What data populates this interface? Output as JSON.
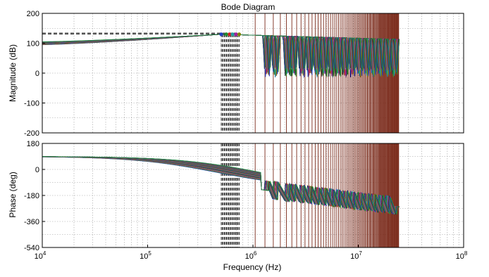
{
  "chart_data": {
    "type": "line",
    "title": "Bode Diagram",
    "xlabel": "Frequency  (Hz)",
    "xscale": "log",
    "xlim": [
      10000,
      100000000
    ],
    "x_ticks": [
      {
        "base": "10",
        "exp": "4"
      },
      {
        "base": "10",
        "exp": "5"
      },
      {
        "base": "10",
        "exp": "6"
      },
      {
        "base": "10",
        "exp": "7"
      },
      {
        "base": "10",
        "exp": "8"
      }
    ],
    "grid": true,
    "colors": {
      "resonance_lines": "#7a2a1a",
      "dashed_markers": "#000000",
      "axis": "#000000",
      "grid": "#a0a0a0",
      "series": [
        "#1f3fbf",
        "#1f8f2f",
        "#d02020",
        "#20a0a0",
        "#a020a0",
        "#808000",
        "#303030"
      ]
    },
    "panels": [
      {
        "name": "magnitude",
        "ylabel": "Magnitude (dB)",
        "ylim": [
          -200,
          200
        ],
        "y_ticks": [
          "200",
          "100",
          "0",
          "-100",
          "-200"
        ],
        "y_tick_values": [
          200,
          100,
          0,
          -100,
          -200
        ],
        "dashed_reference_levels": [
          131,
          134
        ],
        "low_freq_level": [
          95,
          105
        ],
        "peak": {
          "x": 500000,
          "y": 130
        },
        "ripple_floor": -15
      },
      {
        "name": "phase",
        "ylabel": "Phase (deg)",
        "ylim": [
          -540,
          180
        ],
        "y_ticks": [
          "180",
          "0",
          "-180",
          "-360",
          "-540"
        ],
        "y_tick_values": [
          180,
          0,
          -180,
          -360,
          -540
        ],
        "start_phase": 90
      }
    ],
    "markers": {
      "dashed_vertical_x_range": [
        500000,
        740000
      ],
      "dashed_vertical_count": 18,
      "dots_x": [
        500000,
        560000,
        600000,
        640000,
        690000,
        740000
      ]
    },
    "resonance_lines_x": [
      1050000,
      1300000,
      1560000,
      1820000,
      2080000,
      2340000,
      2600000,
      2860000,
      3120000,
      3380000,
      3640000,
      3900000,
      4160000,
      4420000,
      4680000,
      4940000,
      5200000,
      5460000,
      5720000,
      5980000,
      6240000,
      6500000,
      6760000,
      7020000,
      7280000,
      7540000,
      7800000,
      8060000,
      8320000,
      8580000,
      8840000,
      9100000,
      9360000,
      9620000,
      9880000,
      10140000,
      10400000,
      10660000,
      10920000,
      11180000,
      11440000,
      11700000,
      11960000,
      12220000,
      12480000,
      12740000,
      13000000,
      13260000,
      13520000,
      13780000,
      14040000,
      14300000,
      14560000,
      14820000,
      15080000,
      15340000,
      15600000,
      15860000,
      16120000,
      16380000,
      16640000,
      16900000,
      17160000,
      17420000,
      17680000,
      17940000,
      18200000,
      18460000,
      18720000,
      18980000,
      19240000,
      19500000,
      19760000,
      20020000,
      20280000,
      20540000,
      20800000,
      21060000,
      21320000,
      21580000,
      21840000,
      22100000,
      22360000,
      22620000,
      22880000,
      23140000,
      23400000,
      23660000,
      23920000,
      24180000
    ],
    "series_count": 30,
    "curve_end_frequency": 24500000,
    "notch_frequencies": [
      1380000,
      1650000,
      2150000,
      2450000,
      2950000,
      3500000,
      4100000,
      4800000,
      5600000,
      6500000,
      7600000,
      8900000,
      10400000,
      12100000,
      14100000,
      16400000,
      19100000,
      22300000
    ]
  }
}
